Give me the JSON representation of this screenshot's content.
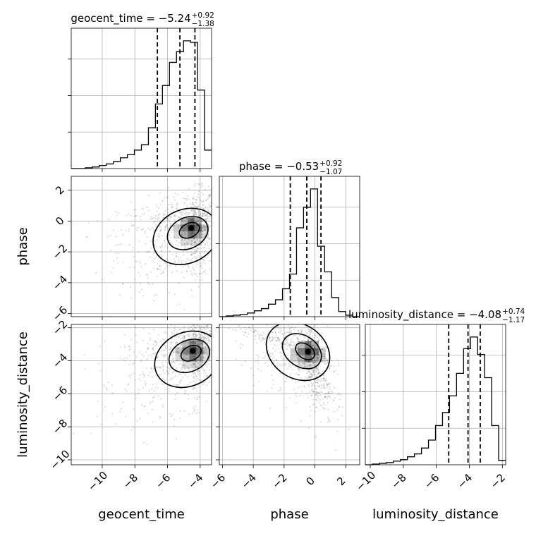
{
  "chart_data": {
    "type": "corner",
    "parameters": [
      "geocent_time",
      "phase",
      "luminosity_distance"
    ],
    "summaries": [
      {
        "parameter": "geocent_time",
        "name": "geocent_time",
        "median": "−5.24",
        "upper": "+0.92",
        "lower": "−1.38"
      },
      {
        "parameter": "phase",
        "name": "phase",
        "median": "−0.53",
        "upper": "+0.92",
        "lower": "−1.07"
      },
      {
        "parameter": "luminosity_distance",
        "name": "luminosity_distance",
        "median": "−4.08",
        "upper": "+0.74",
        "lower": "−1.17"
      }
    ],
    "ranges": {
      "geocent_time": [
        -11.9,
        -3.3
      ],
      "phase": [
        -6.2,
        2.9
      ],
      "luminosity_distance": [
        -10.3,
        -1.8
      ]
    },
    "tick_values": {
      "geocent_time": [
        -10,
        -8,
        -6,
        -4
      ],
      "phase": [
        -6,
        -4,
        -2,
        0,
        2
      ],
      "luminosity_distance": [
        -10,
        -8,
        -6,
        -4,
        -2
      ]
    },
    "tick_labels": {
      "geocent_time": [
        "−10",
        "−8",
        "−6",
        "−4"
      ],
      "phase": [
        "−6",
        "−4",
        "−2",
        "0",
        "2"
      ],
      "luminosity_distance": [
        "−10",
        "−8",
        "−6",
        "−4",
        "−2"
      ]
    },
    "quantiles": {
      "geocent_time": [
        -6.62,
        -5.24,
        -4.32
      ],
      "phase": [
        -1.6,
        -0.53,
        0.39
      ],
      "luminosity_distance": [
        -5.25,
        -4.08,
        -3.34
      ]
    },
    "histograms": {
      "geocent_time": {
        "edges": [
          -11.9,
          -11.47,
          -11.04,
          -10.61,
          -10.18,
          -9.75,
          -9.32,
          -8.89,
          -8.46,
          -8.03,
          -7.6,
          -7.17,
          -6.74,
          -6.31,
          -5.88,
          -5.45,
          -5.02,
          -4.59,
          -4.16,
          -3.73,
          -3.3
        ],
        "counts": [
          0,
          0,
          1,
          2,
          4,
          6,
          9,
          14,
          18,
          24,
          31,
          53,
          84,
          108,
          138,
          152,
          166,
          164,
          102,
          24
        ]
      },
      "phase": {
        "edges": [
          -6.2,
          -5.745,
          -5.29,
          -4.835,
          -4.38,
          -3.925,
          -3.47,
          -3.015,
          -2.56,
          -2.105,
          -1.65,
          -1.195,
          -0.74,
          -0.285,
          0.17,
          0.625,
          1.08,
          1.535,
          1.99,
          2.445,
          2.9
        ],
        "counts": [
          0,
          1,
          2,
          3,
          5,
          8,
          11,
          17,
          23,
          38,
          58,
          121,
          149,
          174,
          96,
          61,
          26,
          7,
          2,
          0
        ]
      },
      "luminosity_distance": {
        "edges": [
          -10.3,
          -9.875,
          -9.45,
          -9.025,
          -8.6,
          -8.175,
          -7.75,
          -7.325,
          -6.9,
          -6.475,
          -6.05,
          -5.625,
          -5.2,
          -4.775,
          -4.35,
          -3.925,
          -3.5,
          -3.075,
          -2.65,
          -2.225,
          -1.8
        ],
        "counts": [
          0,
          1,
          2,
          3,
          5,
          7,
          11,
          15,
          23,
          34,
          54,
          72,
          95,
          126,
          160,
          176,
          152,
          120,
          54,
          6
        ]
      }
    },
    "joint_peaks": {
      "geocent_time_vs_phase": {
        "x": -4.55,
        "y": -0.45
      },
      "geocent_time_vs_luminosity_distance": {
        "x": -4.45,
        "y": -3.4
      },
      "phase_vs_luminosity_distance": {
        "x": -0.45,
        "y": -3.45
      }
    },
    "grid": true,
    "histogram_y_tick_labels": false
  }
}
